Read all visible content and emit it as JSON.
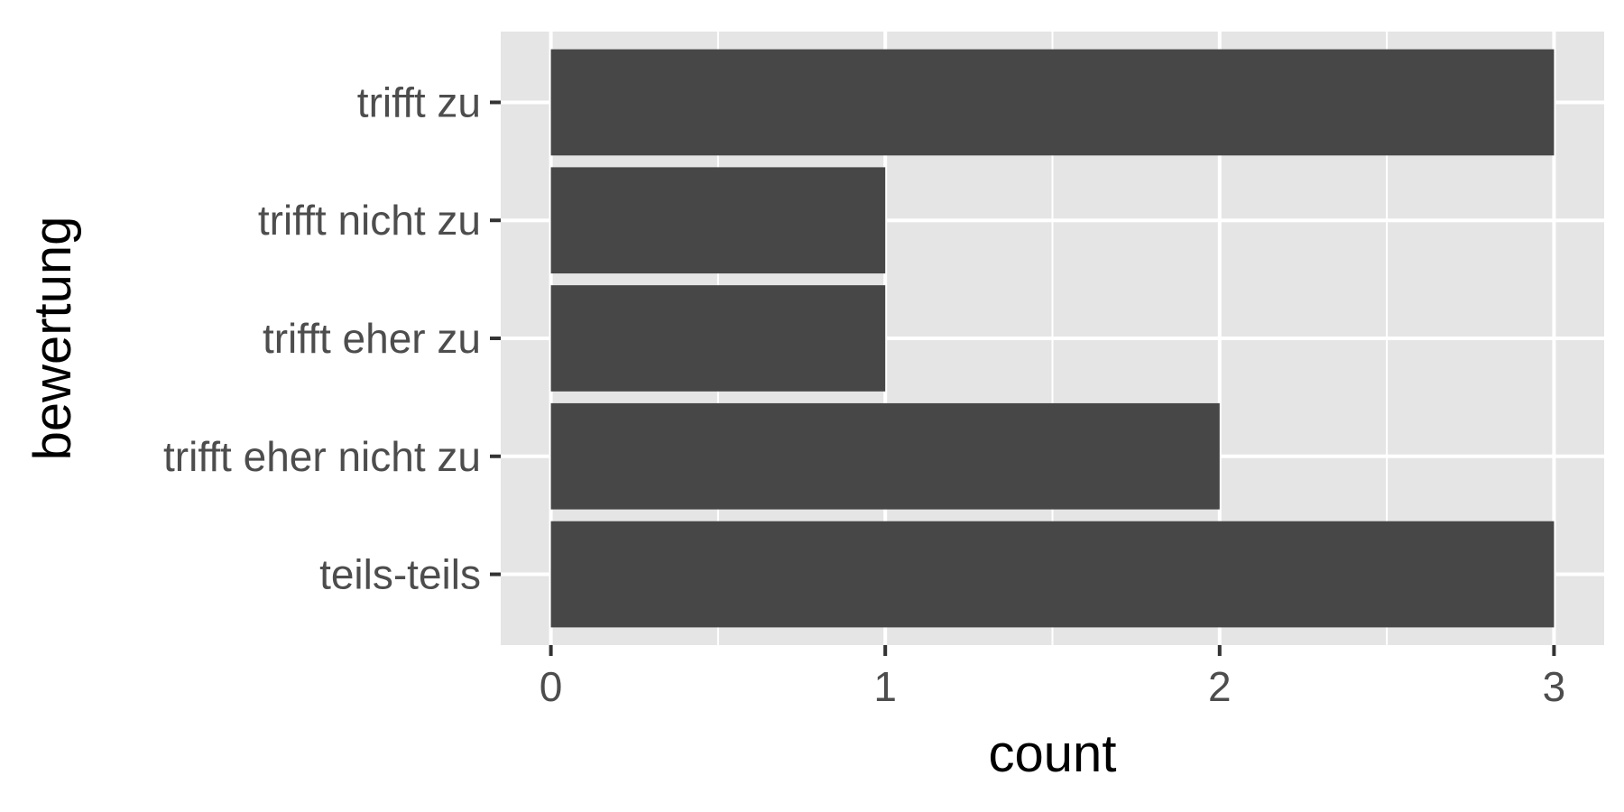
{
  "chart_data": {
    "type": "bar",
    "orientation": "horizontal",
    "categories": [
      "trifft zu",
      "trifft nicht zu",
      "trifft eher zu",
      "trifft eher nicht zu",
      "teils-teils"
    ],
    "values": [
      3,
      1,
      1,
      2,
      3
    ],
    "xlabel": "count",
    "ylabel": "bewertung",
    "xlim": [
      -0.15,
      3.15
    ],
    "x_ticks": [
      0,
      1,
      2,
      3
    ],
    "x_tick_labels": [
      "0",
      "1",
      "2",
      "3"
    ],
    "grid": true,
    "legend": "none",
    "colors": {
      "panel_background": "#e5e5e5",
      "grid": "#ffffff",
      "bar_fill": "#474747",
      "tick_text": "#4d4d4d",
      "tick_mark": "#333333",
      "title_text": "#000000"
    }
  }
}
